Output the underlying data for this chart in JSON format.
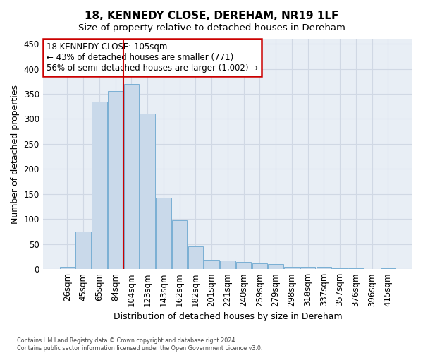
{
  "title": "18, KENNEDY CLOSE, DEREHAM, NR19 1LF",
  "subtitle": "Size of property relative to detached houses in Dereham",
  "xlabel": "Distribution of detached houses by size in Dereham",
  "ylabel": "Number of detached properties",
  "bar_labels": [
    "26sqm",
    "45sqm",
    "65sqm",
    "84sqm",
    "104sqm",
    "123sqm",
    "143sqm",
    "162sqm",
    "182sqm",
    "201sqm",
    "221sqm",
    "240sqm",
    "259sqm",
    "279sqm",
    "298sqm",
    "318sqm",
    "337sqm",
    "357sqm",
    "376sqm",
    "396sqm",
    "415sqm"
  ],
  "bar_values": [
    5,
    75,
    335,
    355,
    370,
    310,
    143,
    98,
    45,
    18,
    17,
    14,
    11,
    10,
    5,
    5,
    4,
    2,
    1,
    0,
    1
  ],
  "bar_color": "#c9d9ea",
  "bar_edge_color": "#7aafd4",
  "property_line_color": "#cc0000",
  "annotation_text": "18 KENNEDY CLOSE: 105sqm\n← 43% of detached houses are smaller (771)\n56% of semi-detached houses are larger (1,002) →",
  "annotation_box_color": "#ffffff",
  "annotation_box_edge_color": "#cc0000",
  "ylim": [
    0,
    460
  ],
  "yticks": [
    0,
    50,
    100,
    150,
    200,
    250,
    300,
    350,
    400,
    450
  ],
  "background_color": "#e8eef5",
  "grid_color": "#d0d8e4",
  "footer_line1": "Contains HM Land Registry data © Crown copyright and database right 2024.",
  "footer_line2": "Contains public sector information licensed under the Open Government Licence v3.0.",
  "title_fontsize": 11,
  "subtitle_fontsize": 9.5,
  "xlabel_fontsize": 9,
  "ylabel_fontsize": 9,
  "tick_fontsize": 8.5,
  "annot_fontsize": 8.5
}
